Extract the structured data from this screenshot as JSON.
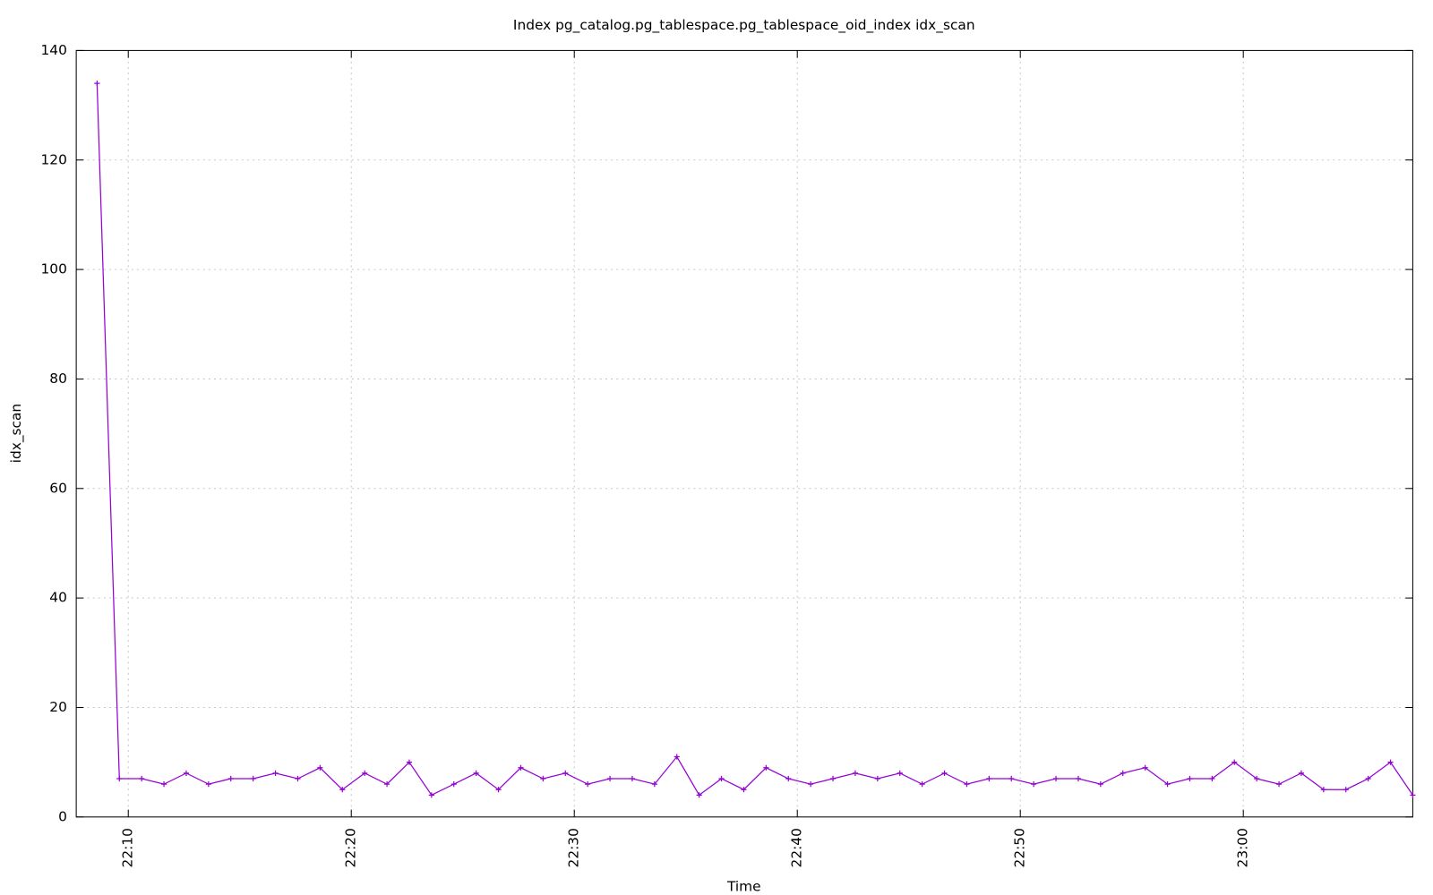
{
  "chart_data": {
    "type": "line",
    "title": "Index pg_catalog.pg_tablespace.pg_tablespace_oid_index idx_scan",
    "x_label": "Time",
    "y_label": "idx_scan",
    "x": [
      "22:08:36",
      "22:09:36",
      "22:10:36",
      "22:11:36",
      "22:12:36",
      "22:13:36",
      "22:14:36",
      "22:15:36",
      "22:16:36",
      "22:17:36",
      "22:18:36",
      "22:19:36",
      "22:20:36",
      "22:21:36",
      "22:22:36",
      "22:23:36",
      "22:24:36",
      "22:25:36",
      "22:26:36",
      "22:27:36",
      "22:28:36",
      "22:29:36",
      "22:30:36",
      "22:31:36",
      "22:32:36",
      "22:33:36",
      "22:34:36",
      "22:35:36",
      "22:36:36",
      "22:37:36",
      "22:38:36",
      "22:39:36",
      "22:40:36",
      "22:41:36",
      "22:42:36",
      "22:43:36",
      "22:44:36",
      "22:45:36",
      "22:46:36",
      "22:47:36",
      "22:48:36",
      "22:49:36",
      "22:50:36",
      "22:51:36",
      "22:52:36",
      "22:53:36",
      "22:54:36",
      "22:55:36",
      "22:56:36",
      "22:57:36",
      "22:58:36",
      "22:59:36",
      "23:00:36",
      "23:01:36",
      "23:02:36",
      "23:03:36",
      "23:04:36",
      "23:05:36",
      "23:06:36",
      "23:07:36"
    ],
    "series": [
      {
        "name": "idx_scan",
        "color": "#9400d3",
        "values": [
          134,
          7,
          7,
          6,
          8,
          6,
          7,
          7,
          8,
          7,
          9,
          5,
          8,
          6,
          10,
          4,
          6,
          8,
          5,
          9,
          7,
          8,
          6,
          7,
          7,
          6,
          11,
          4,
          7,
          5,
          9,
          7,
          6,
          7,
          8,
          7,
          8,
          6,
          8,
          6,
          7,
          7,
          6,
          7,
          7,
          6,
          8,
          9,
          6,
          7,
          7,
          10,
          7,
          6,
          8,
          5,
          5,
          7,
          10,
          4
        ]
      }
    ],
    "xlim": [
      "22:07:40",
      "23:07:36"
    ],
    "xticks": [
      "22:10",
      "22:20",
      "22:30",
      "22:40",
      "22:50",
      "23:00"
    ],
    "ylim": [
      0,
      140
    ],
    "yticks": [
      0,
      20,
      40,
      60,
      80,
      100,
      120,
      140
    ],
    "grid": true
  }
}
